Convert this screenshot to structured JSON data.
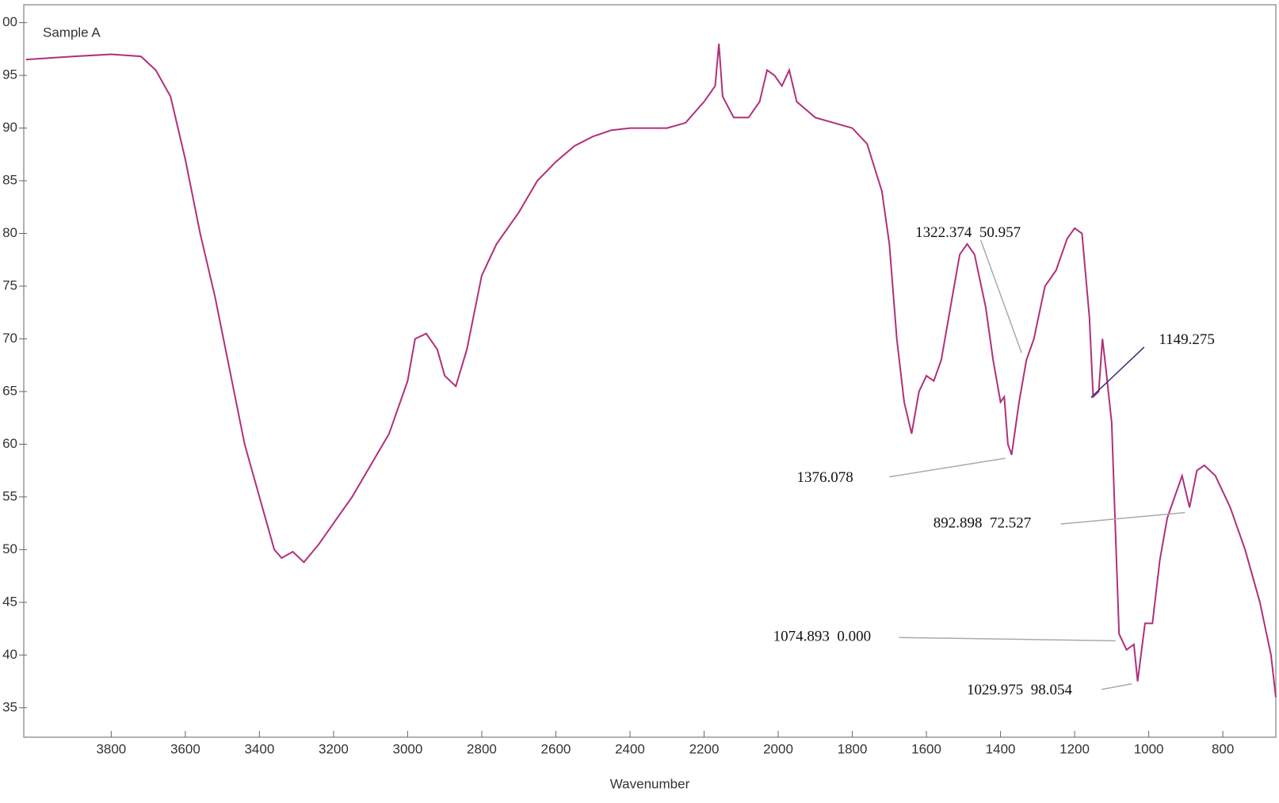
{
  "chart_data": {
    "type": "line",
    "xlabel": "Wavenumber",
    "x": [
      4030,
      3900,
      3800,
      3720,
      3680,
      3640,
      3600,
      3560,
      3520,
      3480,
      3440,
      3400,
      3360,
      3340,
      3310,
      3280,
      3240,
      3200,
      3150,
      3100,
      3050,
      3000,
      2980,
      2950,
      2920,
      2900,
      2870,
      2840,
      2800,
      2760,
      2700,
      2650,
      2600,
      2550,
      2500,
      2450,
      2400,
      2300,
      2250,
      2200,
      2170,
      2160,
      2150,
      2120,
      2080,
      2050,
      2030,
      2010,
      1990,
      1970,
      1950,
      1900,
      1800,
      1760,
      1720,
      1700,
      1680,
      1660,
      1640,
      1620,
      1600,
      1580,
      1560,
      1540,
      1510,
      1490,
      1470,
      1440,
      1420,
      1400,
      1390,
      1380,
      1370,
      1350,
      1330,
      1310,
      1280,
      1250,
      1220,
      1200,
      1180,
      1160,
      1150,
      1135,
      1125,
      1115,
      1100,
      1090,
      1080,
      1060,
      1040,
      1030,
      1010,
      990,
      970,
      950,
      930,
      910,
      890,
      870,
      850,
      820,
      780,
      740,
      700,
      670,
      657
    ],
    "series": [
      {
        "name": "Sample A",
        "color": "#b0307a",
        "values": [
          96.5,
          96.8,
          97,
          96.8,
          95.5,
          93,
          87,
          80,
          74,
          67,
          60,
          55,
          50,
          49.2,
          49.8,
          48.8,
          50.5,
          52.5,
          55,
          58,
          61,
          66,
          70,
          70.5,
          69,
          66.5,
          65.5,
          69,
          76,
          79,
          82,
          85,
          86.8,
          88.3,
          89.2,
          89.8,
          90,
          90,
          90.5,
          92.5,
          94,
          98,
          93,
          91,
          91,
          92.5,
          95.5,
          95,
          94,
          95.5,
          92.5,
          91,
          90,
          88.5,
          84,
          79,
          70,
          64,
          61,
          65,
          66.5,
          66,
          68,
          72,
          78,
          79,
          78,
          73,
          68,
          64,
          64.5,
          60,
          59,
          64,
          68,
          70,
          75,
          76.5,
          79.5,
          80.5,
          80,
          72,
          64.5,
          65,
          70,
          67,
          62,
          52,
          42,
          40.5,
          41,
          37.5,
          43,
          43,
          49,
          53,
          55,
          57,
          54,
          57.5,
          58,
          57,
          54,
          50,
          45,
          40,
          36
        ]
      }
    ],
    "xlim": [
      4036,
      657
    ],
    "ylim": [
      32.2,
      101.7
    ],
    "xticks": [
      3800,
      3600,
      3400,
      3200,
      3000,
      2800,
      2600,
      2400,
      2200,
      2000,
      1800,
      1600,
      1400,
      1200,
      1000,
      800
    ],
    "yticks": [
      {
        "value": 100,
        "label": "00"
      },
      95,
      90,
      85,
      80,
      75,
      70,
      65,
      60,
      55,
      50,
      45,
      40,
      35
    ],
    "annotations": [
      "1322.374  50.957",
      "1149.275",
      "1376.078",
      "892.898  72.527",
      "1074.893  0.000",
      "1029.975  98.054"
    ]
  }
}
